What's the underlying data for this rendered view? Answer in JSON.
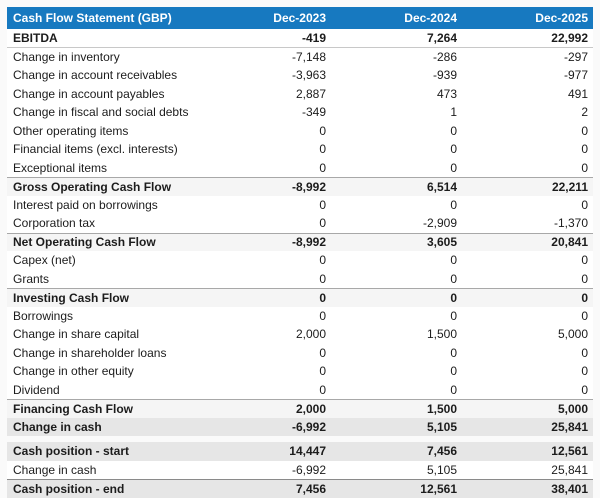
{
  "colors": {
    "header_bg": "#1779c0",
    "header_text": "#ffffff",
    "subtotal_row_bg": "#f5f5f5",
    "total_row_bg": "#e6e6e6",
    "page_bg": "#fafafa"
  },
  "chart_data": {
    "type": "table",
    "title": "Cash Flow Statement (GBP)",
    "columns": [
      "Dec-2023",
      "Dec-2024",
      "Dec-2025"
    ],
    "rows": [
      {
        "label": "EBITDA",
        "values": [
          "-419",
          "7,264",
          "22,992"
        ],
        "row_type": "ebitda"
      },
      {
        "label": "Change in inventory",
        "values": [
          "-7,148",
          "-286",
          "-297"
        ],
        "row_type": "item"
      },
      {
        "label": "Change in account receivables",
        "values": [
          "-3,963",
          "-939",
          "-977"
        ],
        "row_type": "item"
      },
      {
        "label": "Change in account payables",
        "values": [
          "2,887",
          "473",
          "491"
        ],
        "row_type": "item"
      },
      {
        "label": "Change in fiscal and social debts",
        "values": [
          "-349",
          "1",
          "2"
        ],
        "row_type": "item"
      },
      {
        "label": "Other operating items",
        "values": [
          "0",
          "0",
          "0"
        ],
        "row_type": "item"
      },
      {
        "label": "Financial items (excl. interests)",
        "values": [
          "0",
          "0",
          "0"
        ],
        "row_type": "item"
      },
      {
        "label": "Exceptional items",
        "values": [
          "0",
          "0",
          "0"
        ],
        "row_type": "item"
      },
      {
        "label": "Gross Operating Cash Flow",
        "values": [
          "-8,992",
          "6,514",
          "22,211"
        ],
        "row_type": "subtotal"
      },
      {
        "label": "Interest paid on borrowings",
        "values": [
          "0",
          "0",
          "0"
        ],
        "row_type": "item"
      },
      {
        "label": "Corporation tax",
        "values": [
          "0",
          "-2,909",
          "-1,370"
        ],
        "row_type": "item"
      },
      {
        "label": "Net Operating Cash Flow",
        "values": [
          "-8,992",
          "3,605",
          "20,841"
        ],
        "row_type": "subtotal"
      },
      {
        "label": "Capex (net)",
        "values": [
          "0",
          "0",
          "0"
        ],
        "row_type": "item"
      },
      {
        "label": "Grants",
        "values": [
          "0",
          "0",
          "0"
        ],
        "row_type": "item"
      },
      {
        "label": "Investing Cash Flow",
        "values": [
          "0",
          "0",
          "0"
        ],
        "row_type": "subtotal"
      },
      {
        "label": "Borrowings",
        "values": [
          "0",
          "0",
          "0"
        ],
        "row_type": "item"
      },
      {
        "label": "Change in share capital",
        "values": [
          "2,000",
          "1,500",
          "5,000"
        ],
        "row_type": "item"
      },
      {
        "label": "Change in shareholder loans",
        "values": [
          "0",
          "0",
          "0"
        ],
        "row_type": "item"
      },
      {
        "label": "Change in other equity",
        "values": [
          "0",
          "0",
          "0"
        ],
        "row_type": "item"
      },
      {
        "label": "Dividend",
        "values": [
          "0",
          "0",
          "0"
        ],
        "row_type": "item"
      },
      {
        "label": "Financing Cash Flow",
        "values": [
          "2,000",
          "1,500",
          "5,000"
        ],
        "row_type": "subtotal"
      },
      {
        "label": "Change in cash",
        "values": [
          "-6,992",
          "5,105",
          "25,841"
        ],
        "row_type": "total"
      },
      {
        "label": "Cash position - start",
        "values": [
          "14,447",
          "7,456",
          "12,561"
        ],
        "row_type": "total",
        "gap_before": true
      },
      {
        "label": "Change in cash",
        "values": [
          "-6,992",
          "5,105",
          "25,841"
        ],
        "row_type": "item"
      },
      {
        "label": "Cash position - end",
        "values": [
          "7,456",
          "12,561",
          "38,401"
        ],
        "row_type": "total_strong"
      }
    ]
  }
}
